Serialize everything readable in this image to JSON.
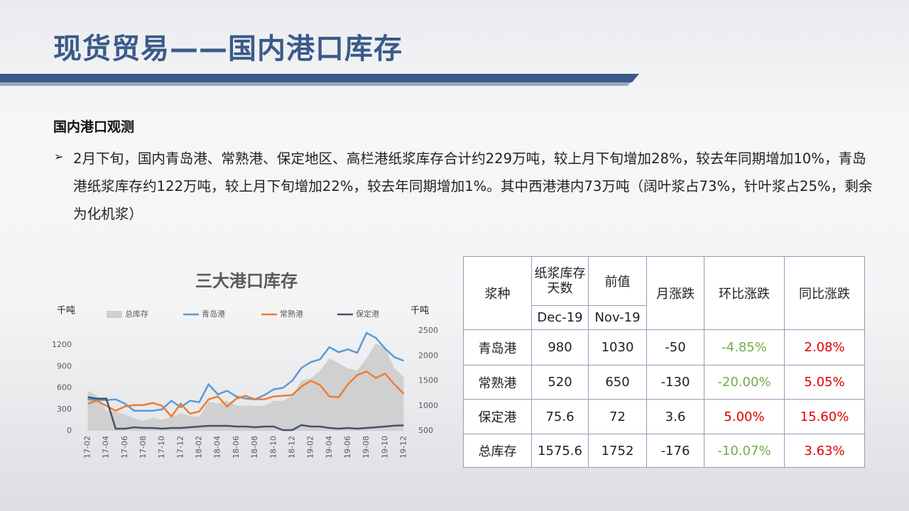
{
  "slide": {
    "title": "现货贸易——国内港口库存",
    "section": "国内港口观测",
    "paragraph": "2月下旬，国内青岛港、常熟港、保定地区、高栏港纸浆库存合计约229万吨，较上月下旬增加28%，较去年同期增加10%，青岛港纸浆库存约122万吨，较上月下旬增加22%，较去年同期增加1%。其中西港港内73万吨（阔叶浆占73%，针叶浆占25%，剩余为化机浆）"
  },
  "chart_data": {
    "type": "line",
    "title": "三大港口库存",
    "y_label": "千吨",
    "y2_label": "千吨",
    "categories": [
      "17-02",
      null,
      "17-04",
      null,
      "17-06",
      null,
      "17-08",
      null,
      "17-10",
      null,
      "17-12",
      null,
      "18-02",
      null,
      "18-04",
      null,
      "18-06",
      null,
      "18-08",
      null,
      "18-10",
      null,
      "18-12",
      null,
      "19-02",
      null,
      "19-04",
      null,
      "19-06",
      null,
      "19-08",
      null,
      "19-10",
      null,
      "19-12"
    ],
    "series": [
      {
        "name": "总库存",
        "type": "area",
        "axis": "y2",
        "color": "#d0d0d0",
        "values": [
          1300,
          1200,
          900,
          880,
          830,
          750,
          700,
          760,
          720,
          780,
          850,
          800,
          780,
          1080,
          1050,
          1100,
          1000,
          1000,
          1000,
          1000,
          1100,
          1100,
          1200,
          1500,
          1550,
          1700,
          1950,
          1850,
          1750,
          1700,
          1950,
          2250,
          2150,
          1752,
          1575.6
        ]
      },
      {
        "name": "青岛港",
        "color": "#5b9bd5",
        "values": [
          440,
          430,
          430,
          440,
          380,
          280,
          280,
          280,
          300,
          420,
          330,
          420,
          400,
          650,
          510,
          560,
          480,
          450,
          440,
          500,
          580,
          600,
          700,
          880,
          960,
          1000,
          1170,
          1100,
          1140,
          1090,
          1370,
          1300,
          1150,
          1030,
          980
        ]
      },
      {
        "name": "常熟港",
        "color": "#ed7d31",
        "values": [
          380,
          420,
          350,
          280,
          340,
          360,
          360,
          390,
          350,
          200,
          380,
          240,
          270,
          440,
          480,
          340,
          450,
          490,
          440,
          440,
          480,
          490,
          500,
          620,
          700,
          640,
          480,
          470,
          650,
          780,
          830,
          740,
          800,
          650,
          520
        ]
      },
      {
        "name": "保定港",
        "color": "#44546a",
        "values": [
          470,
          450,
          450,
          30,
          30,
          50,
          40,
          40,
          30,
          40,
          40,
          50,
          60,
          70,
          70,
          70,
          60,
          60,
          50,
          60,
          60,
          10,
          10,
          80,
          60,
          60,
          40,
          30,
          40,
          30,
          40,
          50,
          60,
          72,
          75.6
        ]
      }
    ],
    "ylim": [
      0,
      1400
    ],
    "yticks": [
      0,
      300,
      600,
      900,
      1200
    ],
    "y2lim": [
      500,
      2500
    ],
    "y2ticks": [
      500,
      1000,
      1500,
      2000,
      2500
    ],
    "grid": false,
    "legend": "top"
  },
  "table": {
    "header": [
      "浆种",
      "纸浆库存天数",
      "前值",
      "月涨跌",
      "环比涨跌",
      "同比涨跌"
    ],
    "subheader": [
      "Dec-19",
      "Nov-19"
    ],
    "rows": [
      [
        "青岛港",
        "980",
        "1030",
        "-50",
        "-4.85%",
        "2.08%"
      ],
      [
        "常熟港",
        "520",
        "650",
        "-130",
        "-20.00%",
        "5.05%"
      ],
      [
        "保定港",
        "75.6",
        "72",
        "3.6",
        "5.00%",
        "15.60%"
      ],
      [
        "总库存",
        "1575.6",
        "1752",
        "-176",
        "-10.07%",
        "3.63%"
      ]
    ],
    "colors": {
      "down": "#70ad47",
      "up": "#e00000"
    }
  }
}
